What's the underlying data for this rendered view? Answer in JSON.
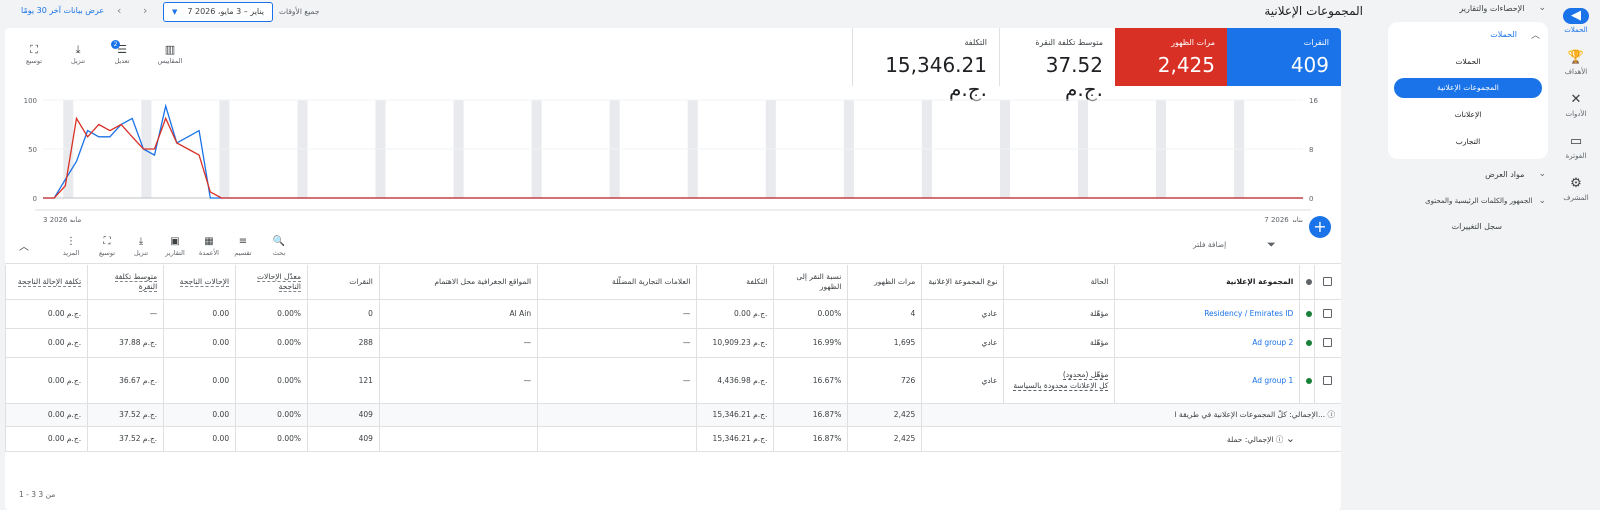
{
  "rail": [
    {
      "icon": "campaigns-icon",
      "glyph": "◀",
      "label": "الحملات",
      "active": true
    },
    {
      "icon": "goals-icon",
      "glyph": "🏆",
      "label": "الأهداف"
    },
    {
      "icon": "tools-icon",
      "glyph": "✕",
      "label": "الأدوات"
    },
    {
      "icon": "billing-icon",
      "glyph": "▭",
      "label": "الفوترة"
    },
    {
      "icon": "admin-icon",
      "glyph": "⚙",
      "label": "المشرف"
    }
  ],
  "nav": {
    "reports": "الإحصاءات والتقارير",
    "campaigns_header": "الحملات",
    "sub": [
      "الحملات",
      "المجموعات الإعلانية",
      "الإعلانات",
      "التجارب"
    ],
    "assets": "مواد العرض",
    "audiences": "الجمهور والكلمات الرئيسية والمحتوى",
    "change_history": "سجل التغييرات"
  },
  "header": {
    "title": "المجموعات الإعلانية",
    "all_time": "جميع الأوقات",
    "date_range": "7 يناير – 3 مايو، 2026",
    "show_last_30": "عرض بيانات آخر 30 يومًا"
  },
  "kpis": [
    {
      "label": "النقرات",
      "value": "409",
      "color": "#1a73e8"
    },
    {
      "label": "مرات الظهور",
      "value": "2,425",
      "color": "#d93025"
    },
    {
      "label": "متوسط تكلفة النقرة",
      "value": "37.52 ج.م."
    },
    {
      "label": "التكلفة",
      "value": "15,346.21 ج.م."
    }
  ],
  "chart_tools": [
    {
      "icon": "expand-icon",
      "glyph": "⛶",
      "label": "توسيع"
    },
    {
      "icon": "download-icon",
      "glyph": "⤓",
      "label": "تنزيل"
    },
    {
      "icon": "adjust-icon",
      "glyph": "☰",
      "label": "تعديل",
      "badge": "2"
    },
    {
      "icon": "metrics-icon",
      "glyph": "▥",
      "label": "المقاييس"
    }
  ],
  "chart_data": {
    "type": "line",
    "x_start_label": "7 يناير 2026",
    "x_end_label": "3 مايو 2026",
    "left_axis": {
      "ticks": [
        "100",
        "50",
        "0"
      ],
      "max": 100
    },
    "right_axis": {
      "ticks": [
        "16",
        "8",
        "0"
      ],
      "max": 16
    },
    "series": [
      {
        "color": "#1a73e8",
        "values": [
          0,
          0,
          3,
          6,
          11,
          10,
          10,
          12,
          13,
          8,
          7,
          15,
          9,
          10,
          11,
          0,
          0,
          0,
          0,
          0,
          0,
          0,
          0,
          0,
          0,
          0,
          0,
          0,
          0,
          0,
          0,
          0,
          0,
          0,
          0,
          0,
          0,
          0,
          0,
          0,
          0,
          0,
          0,
          0,
          0,
          0,
          0,
          0,
          0,
          0,
          0,
          0,
          0,
          0,
          0,
          0,
          0,
          0,
          0,
          0,
          0,
          0,
          0,
          0,
          0,
          0,
          0,
          0,
          0,
          0,
          0,
          0,
          0,
          0,
          0,
          0,
          0,
          0,
          0,
          0,
          0,
          0,
          0,
          0,
          0,
          0,
          0,
          0,
          0,
          0,
          0,
          0,
          0,
          0,
          0,
          0,
          0,
          0,
          0,
          0,
          0,
          0,
          0,
          0,
          0,
          0,
          0,
          0,
          0,
          0,
          0,
          0,
          0,
          0
        ]
      },
      {
        "color": "#d93025",
        "values": [
          0,
          0,
          2,
          13,
          10,
          12,
          11,
          12,
          10,
          8,
          8,
          13,
          9,
          8,
          7,
          1,
          0,
          0,
          0,
          0,
          0,
          0,
          0,
          0,
          0,
          0,
          0,
          0,
          0,
          0,
          0,
          0,
          0,
          0,
          0,
          0,
          0,
          0,
          0,
          0,
          0,
          0,
          0,
          0,
          0,
          0,
          0,
          0,
          0,
          0,
          0,
          0,
          0,
          0,
          0,
          0,
          0,
          0,
          0,
          0,
          0,
          0,
          0,
          0,
          0,
          0,
          0,
          0,
          0,
          0,
          0,
          0,
          0,
          0,
          0,
          0,
          0,
          0,
          0,
          0,
          0,
          0,
          0,
          0,
          0,
          0,
          0,
          0,
          0,
          0,
          0,
          0,
          0,
          0,
          0,
          0,
          0,
          0,
          0,
          0,
          0,
          0,
          0,
          0,
          0,
          0,
          0,
          0,
          0,
          0,
          0,
          0,
          0,
          0
        ]
      }
    ]
  },
  "add_button": "+",
  "table_tools": [
    {
      "icon": "search-icon",
      "glyph": "🔍",
      "label": "بحث"
    },
    {
      "icon": "segment-icon",
      "glyph": "≡",
      "label": "تقسيم"
    },
    {
      "icon": "columns-icon",
      "glyph": "▦",
      "label": "الأعمدة"
    },
    {
      "icon": "reports-icon",
      "glyph": "▣",
      "label": "التقارير"
    },
    {
      "icon": "download-icon",
      "glyph": "⤓",
      "label": "تنزيل"
    },
    {
      "icon": "expand-icon",
      "glyph": "⛶",
      "label": "توسيع"
    },
    {
      "icon": "more-icon",
      "glyph": "⋮",
      "label": "المزيد"
    }
  ],
  "add_filter": "إضافة فلتر",
  "columns": [
    "المجموعة الإعلانية",
    "الحالة",
    "نوع المجموعة الإعلانية",
    "مرات الظهور",
    "نسبة النقر إلى الظهور",
    "التكلفة",
    "العلامات التجارية المضلّلة",
    "المواقع الجغرافية محل الاهتمام",
    "النقرات",
    "معدّل الإحالات الناجحة",
    "الإحالات الناجحة",
    "متوسط تكلفة النقرة",
    "تكلفة الإحالة الناجحة"
  ],
  "rows": [
    [
      "Residency / Emirates ID",
      "مؤهّلة",
      "عادي",
      "4",
      "0.00%",
      "0.00 ج.م.",
      "—",
      "Al Ain",
      "0",
      "0.00%",
      "0.00",
      "—",
      "0.00 ج.م."
    ],
    [
      "Ad group 2",
      "مؤهّلة",
      "عادي",
      "1,695",
      "16.99%",
      "10,909.23 ج.م.",
      "—",
      "—",
      "288",
      "0.00%",
      "0.00",
      "37.88 ج.م.",
      "0.00 ج.م."
    ],
    [
      "Ad group 1",
      "مؤهّل (محدود)",
      "عادي",
      "726",
      "16.67%",
      "4,436.98 ج.م.",
      "—",
      "—",
      "121",
      "0.00%",
      "0.00",
      "36.67 ج.م.",
      "0.00 ج.م."
    ]
  ],
  "row3_status_note": "كل الإعلانات محدودة بالسياسة",
  "totals": [
    {
      "label": "الإجمالي: كلّ المجموعات الإعلانية في طريقة ا...",
      "values": [
        "2,425",
        "16.87%",
        "15,346.21 ج.م.",
        "",
        "",
        "409",
        "0.00%",
        "0.00",
        "37.52 ج.م.",
        "0.00 ج.م."
      ]
    },
    {
      "label": "الإجمالي: حملة",
      "values": [
        "2,425",
        "16.87%",
        "15,346.21 ج.م.",
        "",
        "",
        "409",
        "0.00%",
        "0.00",
        "37.52 ج.م.",
        "0.00 ج.م."
      ]
    }
  ],
  "pager": "1 - 3 من 3"
}
